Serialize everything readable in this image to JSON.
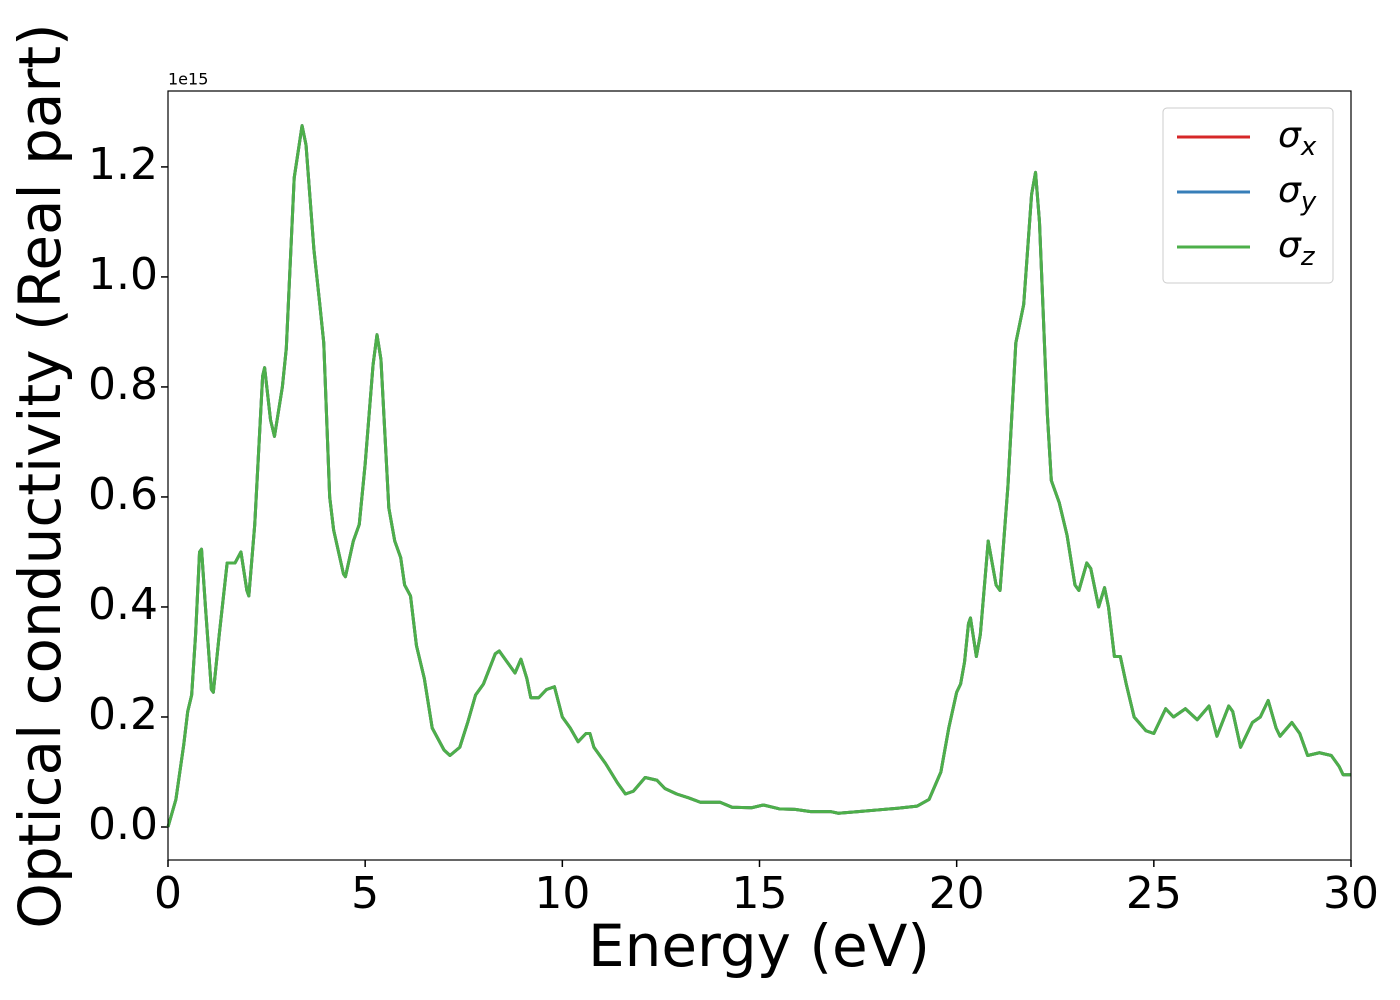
{
  "chart_data": {
    "type": "line",
    "xlabel": "Energy (eV)",
    "ylabel": "Optical conductivity (Real part)",
    "offset_label": "1e15",
    "xlim": [
      0,
      30
    ],
    "ylim": [
      -0.06,
      1.338
    ],
    "xticks": [
      0,
      5,
      10,
      15,
      20,
      25,
      30
    ],
    "yticks": [
      {
        "value": 0,
        "label": "0.0"
      },
      0.2,
      0.4,
      0.6,
      0.8,
      {
        "value": 1,
        "label": "1.0"
      },
      1.2
    ],
    "legend": "upper right",
    "grid": false,
    "x": [
      0,
      0.2,
      0.4,
      0.5,
      0.6,
      0.7,
      0.8,
      0.85,
      0.95,
      1.1,
      1.15,
      1.3,
      1.5,
      1.7,
      1.85,
      2.0,
      2.05,
      2.2,
      2.4,
      2.45,
      2.6,
      2.7,
      2.9,
      3.0,
      3.2,
      3.4,
      3.5,
      3.7,
      3.85,
      3.95,
      4.1,
      4.2,
      4.45,
      4.5,
      4.7,
      4.85,
      5.0,
      5.2,
      5.3,
      5.4,
      5.6,
      5.75,
      5.9,
      6.0,
      6.15,
      6.3,
      6.5,
      6.7,
      7.0,
      7.15,
      7.4,
      7.6,
      7.8,
      8.0,
      8.3,
      8.4,
      8.6,
      8.8,
      8.95,
      9.1,
      9.2,
      9.4,
      9.6,
      9.8,
      10.0,
      10.2,
      10.4,
      10.6,
      10.7,
      10.8,
      11.1,
      11.4,
      11.6,
      11.8,
      12.1,
      12.4,
      12.6,
      12.9,
      13.2,
      13.5,
      14.0,
      14.3,
      14.8,
      15.1,
      15.5,
      15.9,
      16.3,
      16.8,
      17.0,
      17.5,
      18.0,
      18.5,
      19.0,
      19.3,
      19.6,
      19.8,
      20.0,
      20.1,
      20.2,
      20.3,
      20.35,
      20.5,
      20.6,
      20.8,
      21.0,
      21.1,
      21.3,
      21.5,
      21.7,
      21.9,
      22.0,
      22.1,
      22.3,
      22.4,
      22.6,
      22.8,
      23.0,
      23.1,
      23.3,
      23.4,
      23.6,
      23.75,
      23.85,
      24.0,
      24.15,
      24.3,
      24.5,
      24.8,
      25.0,
      25.3,
      25.5,
      25.8,
      26.1,
      26.4,
      26.6,
      26.9,
      27.0,
      27.2,
      27.5,
      27.7,
      27.9,
      28.1,
      28.2,
      28.5,
      28.7,
      28.9,
      29.2,
      29.5,
      29.7,
      29.8,
      30.0
    ],
    "series": [
      {
        "name": "σx",
        "color": "#d62728",
        "values": [
          0,
          0.05,
          0.15,
          0.21,
          0.24,
          0.35,
          0.5,
          0.505,
          0.4,
          0.25,
          0.245,
          0.35,
          0.48,
          0.48,
          0.5,
          0.43,
          0.42,
          0.55,
          0.82,
          0.835,
          0.74,
          0.71,
          0.8,
          0.87,
          1.18,
          1.275,
          1.24,
          1.05,
          0.95,
          0.88,
          0.6,
          0.54,
          0.46,
          0.455,
          0.52,
          0.55,
          0.66,
          0.84,
          0.895,
          0.85,
          0.58,
          0.52,
          0.49,
          0.44,
          0.42,
          0.33,
          0.27,
          0.18,
          0.14,
          0.13,
          0.145,
          0.19,
          0.24,
          0.26,
          0.315,
          0.32,
          0.3,
          0.28,
          0.305,
          0.27,
          0.235,
          0.235,
          0.25,
          0.255,
          0.2,
          0.18,
          0.155,
          0.17,
          0.17,
          0.145,
          0.115,
          0.08,
          0.06,
          0.065,
          0.09,
          0.085,
          0.07,
          0.06,
          0.053,
          0.045,
          0.045,
          0.036,
          0.035,
          0.04,
          0.033,
          0.032,
          0.028,
          0.028,
          0.025,
          0.028,
          0.031,
          0.034,
          0.038,
          0.05,
          0.1,
          0.18,
          0.245,
          0.26,
          0.3,
          0.37,
          0.38,
          0.31,
          0.35,
          0.52,
          0.44,
          0.43,
          0.62,
          0.88,
          0.95,
          1.15,
          1.19,
          1.1,
          0.75,
          0.63,
          0.59,
          0.53,
          0.44,
          0.43,
          0.48,
          0.47,
          0.4,
          0.435,
          0.4,
          0.31,
          0.31,
          0.26,
          0.2,
          0.175,
          0.17,
          0.215,
          0.2,
          0.215,
          0.195,
          0.22,
          0.165,
          0.22,
          0.21,
          0.145,
          0.19,
          0.2,
          0.23,
          0.18,
          0.165,
          0.19,
          0.17,
          0.13,
          0.135,
          0.13,
          0.11,
          0.095,
          0.095
        ]
      },
      {
        "name": "σy",
        "color": "#377eb8",
        "values": [
          0,
          0.05,
          0.15,
          0.21,
          0.24,
          0.35,
          0.5,
          0.505,
          0.4,
          0.25,
          0.245,
          0.35,
          0.48,
          0.48,
          0.5,
          0.43,
          0.42,
          0.55,
          0.82,
          0.835,
          0.74,
          0.71,
          0.8,
          0.87,
          1.18,
          1.275,
          1.24,
          1.05,
          0.95,
          0.88,
          0.6,
          0.54,
          0.46,
          0.455,
          0.52,
          0.55,
          0.66,
          0.84,
          0.895,
          0.85,
          0.58,
          0.52,
          0.49,
          0.44,
          0.42,
          0.33,
          0.27,
          0.18,
          0.14,
          0.13,
          0.145,
          0.19,
          0.24,
          0.26,
          0.315,
          0.32,
          0.3,
          0.28,
          0.305,
          0.27,
          0.235,
          0.235,
          0.25,
          0.255,
          0.2,
          0.18,
          0.155,
          0.17,
          0.17,
          0.145,
          0.115,
          0.08,
          0.06,
          0.065,
          0.09,
          0.085,
          0.07,
          0.06,
          0.053,
          0.045,
          0.045,
          0.036,
          0.035,
          0.04,
          0.033,
          0.032,
          0.028,
          0.028,
          0.025,
          0.028,
          0.031,
          0.034,
          0.038,
          0.05,
          0.1,
          0.18,
          0.245,
          0.26,
          0.3,
          0.37,
          0.38,
          0.31,
          0.35,
          0.52,
          0.44,
          0.43,
          0.62,
          0.88,
          0.95,
          1.15,
          1.19,
          1.1,
          0.75,
          0.63,
          0.59,
          0.53,
          0.44,
          0.43,
          0.48,
          0.47,
          0.4,
          0.435,
          0.4,
          0.31,
          0.31,
          0.26,
          0.2,
          0.175,
          0.17,
          0.215,
          0.2,
          0.215,
          0.195,
          0.22,
          0.165,
          0.22,
          0.21,
          0.145,
          0.19,
          0.2,
          0.23,
          0.18,
          0.165,
          0.19,
          0.17,
          0.13,
          0.135,
          0.13,
          0.11,
          0.095,
          0.095
        ]
      },
      {
        "name": "σz",
        "color": "#4daf4a",
        "values": [
          0,
          0.05,
          0.15,
          0.21,
          0.24,
          0.35,
          0.5,
          0.505,
          0.4,
          0.25,
          0.245,
          0.35,
          0.48,
          0.48,
          0.5,
          0.43,
          0.42,
          0.55,
          0.82,
          0.835,
          0.74,
          0.71,
          0.8,
          0.87,
          1.18,
          1.275,
          1.24,
          1.05,
          0.95,
          0.88,
          0.6,
          0.54,
          0.46,
          0.455,
          0.52,
          0.55,
          0.66,
          0.84,
          0.895,
          0.85,
          0.58,
          0.52,
          0.49,
          0.44,
          0.42,
          0.33,
          0.27,
          0.18,
          0.14,
          0.13,
          0.145,
          0.19,
          0.24,
          0.26,
          0.315,
          0.32,
          0.3,
          0.28,
          0.305,
          0.27,
          0.235,
          0.235,
          0.25,
          0.255,
          0.2,
          0.18,
          0.155,
          0.17,
          0.17,
          0.145,
          0.115,
          0.08,
          0.06,
          0.065,
          0.09,
          0.085,
          0.07,
          0.06,
          0.053,
          0.045,
          0.045,
          0.036,
          0.035,
          0.04,
          0.033,
          0.032,
          0.028,
          0.028,
          0.025,
          0.028,
          0.031,
          0.034,
          0.038,
          0.05,
          0.1,
          0.18,
          0.245,
          0.26,
          0.3,
          0.37,
          0.38,
          0.31,
          0.35,
          0.52,
          0.44,
          0.43,
          0.62,
          0.88,
          0.95,
          1.15,
          1.19,
          1.1,
          0.75,
          0.63,
          0.59,
          0.53,
          0.44,
          0.43,
          0.48,
          0.47,
          0.4,
          0.435,
          0.4,
          0.31,
          0.31,
          0.26,
          0.2,
          0.175,
          0.17,
          0.215,
          0.2,
          0.215,
          0.195,
          0.22,
          0.165,
          0.22,
          0.21,
          0.145,
          0.19,
          0.2,
          0.23,
          0.18,
          0.165,
          0.19,
          0.17,
          0.13,
          0.135,
          0.13,
          0.11,
          0.095,
          0.095
        ]
      }
    ]
  }
}
